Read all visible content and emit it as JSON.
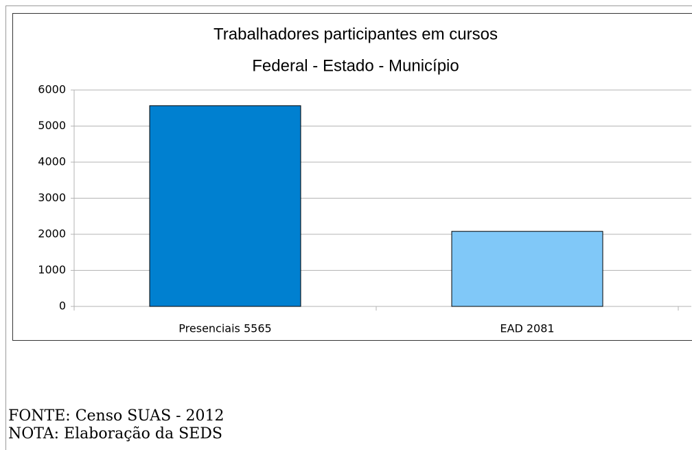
{
  "chart_data": {
    "type": "bar",
    "title": "Trabalhadores participantes em cursos",
    "subtitle": "Federal - Estado - Município",
    "categories": [
      "Presenciais 5565",
      "EAD 2081"
    ],
    "values": [
      5565,
      2081
    ],
    "colors": [
      "#0080d0",
      "#80c8f8"
    ],
    "ylim": [
      0,
      6000
    ],
    "yticks": [
      0,
      1000,
      2000,
      3000,
      4000,
      5000,
      6000
    ],
    "grid": true
  },
  "source": "FONTE: Censo SUAS - 2012",
  "note": "NOTA: Elaboração da SEDS"
}
